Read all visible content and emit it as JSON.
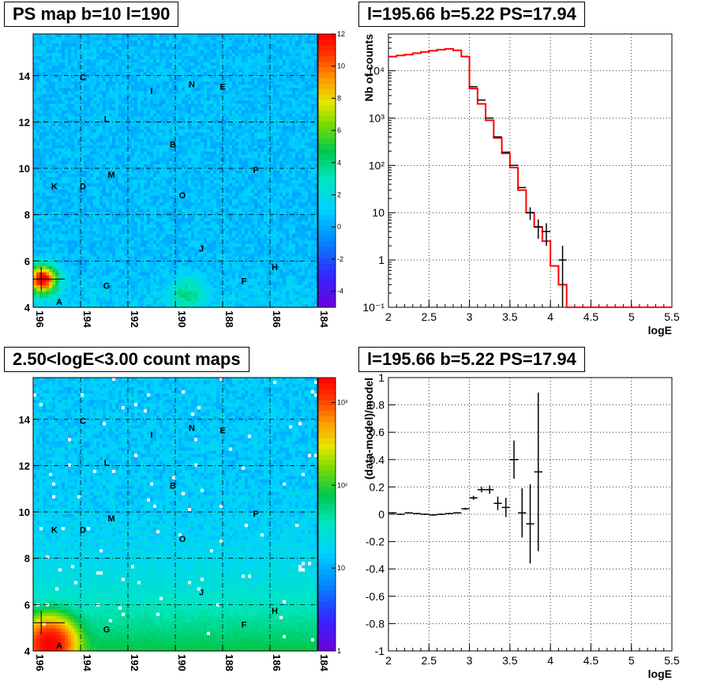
{
  "panels": {
    "ps_map": {
      "title": "PS map b=10 l=190"
    },
    "spectrum": {
      "title": "l=195.66 b=5.22 PS=17.94"
    },
    "count_map": {
      "title": "2.50<logE<3.00 count maps"
    },
    "residual": {
      "title": "l=195.66 b=5.22 PS=17.94"
    }
  },
  "colors": {
    "model_line": "#ff0000",
    "data_markers": "#000000",
    "grid": "#000000"
  },
  "chart_data": [
    {
      "type": "heatmap",
      "title": "PS map b=10 l=190",
      "xlim": [
        196,
        184
      ],
      "ylim": [
        4,
        15.8
      ],
      "x_ticks": [
        196,
        194,
        192,
        190,
        188,
        186,
        184
      ],
      "y_ticks": [
        4,
        6,
        8,
        10,
        12,
        14
      ],
      "colorbar": {
        "min": -5,
        "max": 12,
        "ticks": [
          -4,
          -2,
          0,
          2,
          4,
          6,
          8,
          10,
          12
        ]
      },
      "hotspots": [
        {
          "l": 195.6,
          "b": 5.2,
          "value": 12
        },
        {
          "l": 189.5,
          "b": 4.6,
          "value": 3
        }
      ],
      "labels": [
        {
          "text": "A",
          "l": 194.9,
          "b": 4.1
        },
        {
          "text": "B",
          "l": 190.1,
          "b": 10.9
        },
        {
          "text": "C",
          "l": 193.9,
          "b": 13.8
        },
        {
          "text": "D",
          "l": 193.9,
          "b": 9.1
        },
        {
          "text": "E",
          "l": 188.0,
          "b": 13.4
        },
        {
          "text": "F",
          "l": 187.1,
          "b": 5.0
        },
        {
          "text": "G",
          "l": 192.9,
          "b": 4.8
        },
        {
          "text": "H",
          "l": 185.8,
          "b": 5.6
        },
        {
          "text": "I",
          "l": 191.0,
          "b": 13.2
        },
        {
          "text": "J",
          "l": 188.9,
          "b": 6.4
        },
        {
          "text": "K",
          "l": 195.1,
          "b": 9.1
        },
        {
          "text": "L",
          "l": 192.9,
          "b": 12.0
        },
        {
          "text": "M",
          "l": 192.7,
          "b": 9.6
        },
        {
          "text": "N",
          "l": 189.3,
          "b": 13.5
        },
        {
          "text": "O",
          "l": 189.7,
          "b": 8.7
        },
        {
          "text": "P",
          "l": 186.6,
          "b": 9.8
        }
      ]
    },
    {
      "type": "line",
      "title": "l=195.66 b=5.22 PS=17.94",
      "xlabel": "logE",
      "ylabel": "Nb of counts",
      "xlim": [
        2,
        5.5
      ],
      "ylim": [
        0.1,
        60000
      ],
      "yscale": "log",
      "x_ticks": [
        2,
        2.5,
        3,
        3.5,
        4,
        4.5,
        5,
        5.5
      ],
      "y_ticks": [
        {
          "v": 0.1,
          "label": "10⁻¹"
        },
        {
          "v": 1,
          "label": "1"
        },
        {
          "v": 10,
          "label": "10"
        },
        {
          "v": 100,
          "label": "10²"
        },
        {
          "v": 1000,
          "label": "10³"
        },
        {
          "v": 10000,
          "label": "10⁴"
        }
      ],
      "grid": true,
      "model_bin_width": 0.1,
      "model": [
        20000,
        21000,
        22000,
        23500,
        25000,
        26500,
        28000,
        29000,
        27000,
        20000,
        4200,
        2000,
        900,
        380,
        180,
        90,
        30,
        10,
        5,
        2.5,
        0.75,
        0.3,
        0.1,
        0.1,
        0.1,
        0.1,
        0.1,
        0.1,
        0.1,
        0.1,
        0.1,
        0.1,
        0.1,
        0.1,
        0.1
      ],
      "data": [
        {
          "x": 3.05,
          "y": 4600
        },
        {
          "x": 3.15,
          "y": 2400
        },
        {
          "x": 3.25,
          "y": 1000
        },
        {
          "x": 3.35,
          "y": 400
        },
        {
          "x": 3.45,
          "y": 190
        },
        {
          "x": 3.55,
          "y": 100
        },
        {
          "x": 3.65,
          "y": 34
        },
        {
          "x": 3.75,
          "y": 10,
          "ey": 3
        },
        {
          "x": 3.85,
          "y": 5,
          "ey": 2.2
        },
        {
          "x": 3.95,
          "y": 4,
          "ey": 2
        },
        {
          "x": 4.15,
          "y": 1,
          "ey": 1
        }
      ]
    },
    {
      "type": "heatmap",
      "title": "2.50<logE<3.00 count maps",
      "xlim": [
        196,
        184
      ],
      "ylim": [
        4,
        15.8
      ],
      "x_ticks": [
        196,
        194,
        192,
        190,
        188,
        186,
        184
      ],
      "y_ticks": [
        4,
        6,
        8,
        10,
        12,
        14
      ],
      "colorbar": {
        "scale": "log",
        "min": 1,
        "max": 2000,
        "ticks": [
          {
            "v": 1,
            "label": "1"
          },
          {
            "v": 10,
            "label": "10"
          },
          {
            "v": 100,
            "label": "10²"
          },
          {
            "v": 1000,
            "label": "10³"
          }
        ]
      },
      "hotspots": [
        {
          "l": 195.3,
          "b": 4.3,
          "value": 2000
        }
      ],
      "labels": [
        {
          "text": "A",
          "l": 194.9,
          "b": 4.1
        },
        {
          "text": "B",
          "l": 190.1,
          "b": 11.0
        },
        {
          "text": "C",
          "l": 193.9,
          "b": 13.8
        },
        {
          "text": "D",
          "l": 193.9,
          "b": 9.1
        },
        {
          "text": "E",
          "l": 188.0,
          "b": 13.4
        },
        {
          "text": "F",
          "l": 187.1,
          "b": 5.0
        },
        {
          "text": "G",
          "l": 192.9,
          "b": 4.8
        },
        {
          "text": "H",
          "l": 185.8,
          "b": 5.6
        },
        {
          "text": "I",
          "l": 191.0,
          "b": 13.2
        },
        {
          "text": "J",
          "l": 188.9,
          "b": 6.4
        },
        {
          "text": "K",
          "l": 195.1,
          "b": 9.1
        },
        {
          "text": "L",
          "l": 192.9,
          "b": 12.0
        },
        {
          "text": "M",
          "l": 192.7,
          "b": 9.6
        },
        {
          "text": "N",
          "l": 189.3,
          "b": 13.5
        },
        {
          "text": "O",
          "l": 189.7,
          "b": 8.7
        },
        {
          "text": "P",
          "l": 186.6,
          "b": 9.8
        }
      ]
    },
    {
      "type": "scatter",
      "title": "l=195.66 b=5.22 PS=17.94",
      "xlabel": "logE",
      "ylabel": "(data-model)/model",
      "xlim": [
        2,
        5.5
      ],
      "ylim": [
        -1,
        1
      ],
      "x_ticks": [
        2,
        2.5,
        3,
        3.5,
        4,
        4.5,
        5,
        5.5
      ],
      "y_ticks": [
        -1,
        -0.8,
        -0.6,
        -0.4,
        -0.2,
        0,
        0.2,
        0.4,
        0.6,
        0.8,
        1
      ],
      "grid": true,
      "data": [
        {
          "x": 2.05,
          "y": 0.01,
          "ey": 0.005
        },
        {
          "x": 2.15,
          "y": 0.0,
          "ey": 0.005
        },
        {
          "x": 2.25,
          "y": 0.01,
          "ey": 0.005
        },
        {
          "x": 2.35,
          "y": 0.005,
          "ey": 0.005
        },
        {
          "x": 2.45,
          "y": 0.0,
          "ey": 0.005
        },
        {
          "x": 2.55,
          "y": -0.005,
          "ey": 0.005
        },
        {
          "x": 2.65,
          "y": 0.0,
          "ey": 0.005
        },
        {
          "x": 2.75,
          "y": 0.005,
          "ey": 0.005
        },
        {
          "x": 2.85,
          "y": 0.01,
          "ey": 0.005
        },
        {
          "x": 2.95,
          "y": 0.04,
          "ey": 0.008
        },
        {
          "x": 3.05,
          "y": 0.12,
          "ey": 0.015
        },
        {
          "x": 3.15,
          "y": 0.18,
          "ey": 0.02
        },
        {
          "x": 3.25,
          "y": 0.18,
          "ey": 0.03
        },
        {
          "x": 3.35,
          "y": 0.08,
          "ey": 0.05
        },
        {
          "x": 3.45,
          "y": 0.05,
          "ey": 0.07
        },
        {
          "x": 3.55,
          "y": 0.4,
          "ey": 0.14
        },
        {
          "x": 3.65,
          "y": 0.01,
          "ey": 0.18
        },
        {
          "x": 3.75,
          "y": -0.07,
          "ey": 0.29
        },
        {
          "x": 3.85,
          "y": 0.31,
          "ey": 0.58
        }
      ]
    }
  ]
}
